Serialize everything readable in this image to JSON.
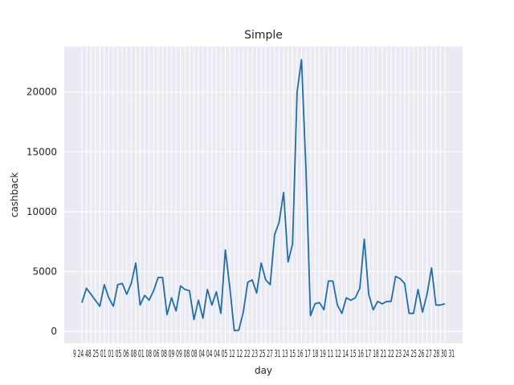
{
  "chart_data": {
    "type": "line",
    "title": "Simple",
    "xlabel": "day",
    "ylabel": "cashback",
    "ylim": [
      -1000,
      23800
    ],
    "yticks": [
      0,
      5000,
      10000,
      15000,
      20000
    ],
    "grid": true,
    "x_tick_text": "9 24 48 25 01 01 05 06 08 01 08 06 08 09 09 08 08 04 04 04 05 12 12 22 23 25 27 31 13 15 16 17 18 19 11 12 14 15 16 17 18 21 22 23 24 25 26 27 28 30 31",
    "series": [
      {
        "color": "#1f6ea8",
        "values": [
          2400,
          3600,
          3100,
          2600,
          2100,
          3900,
          2800,
          2100,
          3900,
          4000,
          3100,
          4000,
          5700,
          2200,
          3000,
          2600,
          3400,
          4500,
          4500,
          1400,
          2800,
          1700,
          3800,
          3500,
          3400,
          1000,
          2600,
          1100,
          3500,
          2200,
          3300,
          1500,
          6800,
          3700,
          50,
          100,
          1600,
          4100,
          4300,
          3200,
          5700,
          4300,
          3900,
          8100,
          9100,
          11600,
          5800,
          7300,
          20000,
          22700,
          13500,
          1300,
          2300,
          2400,
          1800,
          4200,
          4200,
          2200,
          1500,
          2800,
          2600,
          2800,
          3600,
          7700,
          3100,
          1800,
          2500,
          2300,
          2500,
          2500,
          4600,
          4400,
          4000,
          1500,
          1500,
          3500,
          1600,
          3100,
          5300,
          2200,
          2200,
          2300
        ]
      }
    ]
  }
}
